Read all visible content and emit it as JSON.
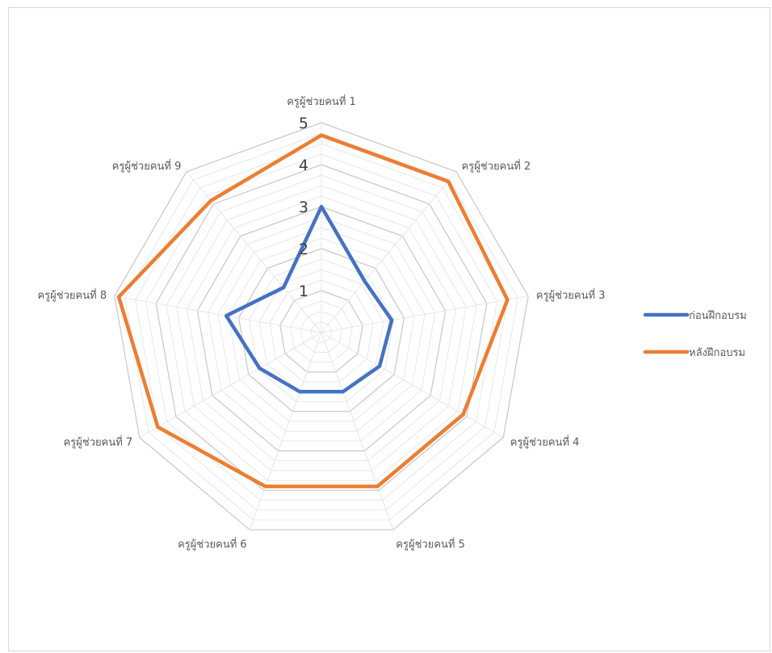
{
  "chart_data": {
    "type": "radar",
    "title": "",
    "categories": [
      "ครูผู้ช่วยคนที่ 1",
      "ครูผู้ช่วยคนที่ 2",
      "ครูผู้ช่วยคนที่ 3",
      "ครูผู้ช่วยคนที่ 4",
      "ครูผู้ช่วยคนที่ 5",
      "ครูผู้ช่วยคนที่ 6",
      "ครูผู้ช่วยคนที่ 7",
      "ครูผู้ช่วยคนที่ 8",
      "ครูผู้ช่วยคนที่ 9"
    ],
    "series": [
      {
        "name": "ก่อนฝึกอบรม",
        "color": "#4472c4",
        "values": [
          3,
          1.6,
          1.7,
          1.6,
          1.5,
          1.5,
          1.7,
          2.3,
          1.4
        ]
      },
      {
        "name": "หลังฝึกอบรม",
        "color": "#ed7d31",
        "values": [
          4.7,
          4.7,
          4.5,
          3.9,
          3.9,
          3.9,
          4.5,
          4.9,
          4.1
        ]
      }
    ],
    "radial_axis": {
      "min": 0,
      "max": 5,
      "labeled_ticks": [
        1,
        2,
        3,
        4,
        5
      ],
      "minor_step": 0.25
    },
    "grid": true,
    "legend_position": "right"
  }
}
